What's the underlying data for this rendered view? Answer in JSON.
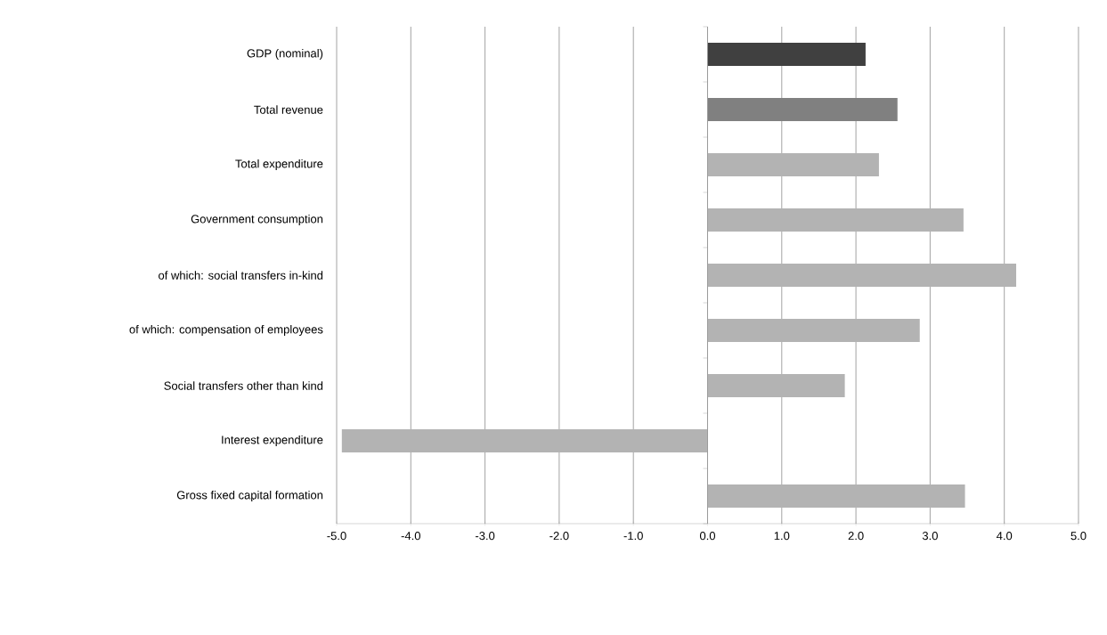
{
  "chart_data": {
    "type": "bar",
    "orientation": "horizontal",
    "categories": [
      "GDP (nominal)",
      "Total revenue",
      "Total expenditure",
      "Government consumption",
      "of which: social transfers in-kind",
      "of which: compensation of employees",
      "Social transfers other than kind",
      "Interest expenditure",
      "Gross fixed capital formation"
    ],
    "values": [
      2.13,
      2.56,
      2.31,
      3.45,
      4.16,
      2.86,
      1.85,
      -4.93,
      3.47
    ],
    "colors": [
      "#404040",
      "#808080",
      "#b3b3b3",
      "#b3b3b3",
      "#b3b3b3",
      "#b3b3b3",
      "#b3b3b3",
      "#b3b3b3",
      "#b3b3b3"
    ],
    "xlim": [
      -5,
      5
    ],
    "xticks": [
      {
        "value": -5,
        "label": "-5.0"
      },
      {
        "value": -4,
        "label": "-4.0"
      },
      {
        "value": -3,
        "label": "-3.0"
      },
      {
        "value": -2,
        "label": "-2.0"
      },
      {
        "value": -1,
        "label": "-1.0"
      },
      {
        "value": 0,
        "label": "0.0"
      },
      {
        "value": 1,
        "label": "1.0"
      },
      {
        "value": 2,
        "label": "2.0"
      },
      {
        "value": 3,
        "label": "3.0"
      },
      {
        "value": 4,
        "label": "4.0"
      },
      {
        "value": 5,
        "label": "5.0"
      }
    ],
    "grid": "x"
  }
}
